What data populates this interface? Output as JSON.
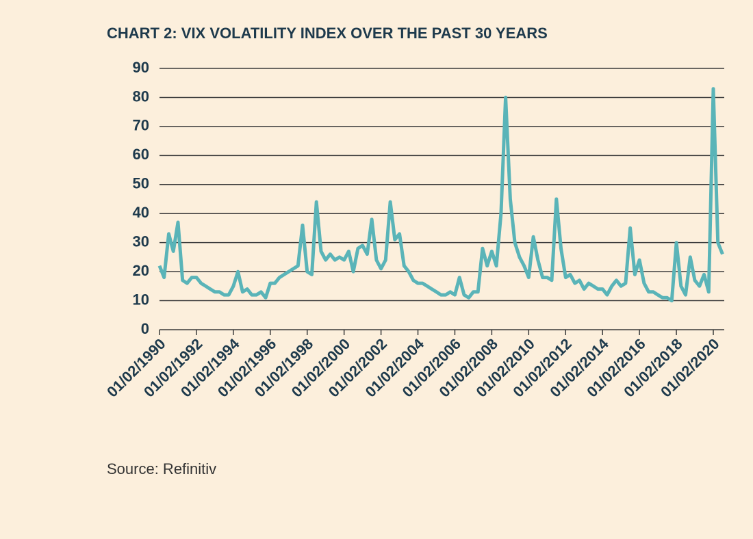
{
  "chart_data": {
    "type": "line",
    "title": "CHART 2: VIX VOLATILITY INDEX OVER THE PAST 30 YEARS",
    "source": "Source: Refinitiv",
    "categories": [
      "01/02/1990",
      null,
      null,
      null,
      null,
      null,
      null,
      null,
      "01/02/1992",
      null,
      null,
      null,
      null,
      null,
      null,
      null,
      "01/02/1994",
      null,
      null,
      null,
      null,
      null,
      null,
      null,
      "01/02/1996",
      null,
      null,
      null,
      null,
      null,
      null,
      null,
      "01/02/1998",
      null,
      null,
      null,
      null,
      null,
      null,
      null,
      "01/02/2000",
      null,
      null,
      null,
      null,
      null,
      null,
      null,
      "01/02/2002",
      null,
      null,
      null,
      null,
      null,
      null,
      null,
      "01/02/2004",
      null,
      null,
      null,
      null,
      null,
      null,
      null,
      "01/02/2006",
      null,
      null,
      null,
      null,
      null,
      null,
      null,
      "01/02/2008",
      null,
      null,
      null,
      null,
      null,
      null,
      null,
      "01/02/2010",
      null,
      null,
      null,
      null,
      null,
      null,
      null,
      "01/02/2012",
      null,
      null,
      null,
      null,
      null,
      null,
      null,
      "01/02/2014",
      null,
      null,
      null,
      null,
      null,
      null,
      null,
      "01/02/2016",
      null,
      null,
      null,
      null,
      null,
      null,
      null,
      "01/02/2018",
      null,
      null,
      null,
      null,
      null,
      null,
      null,
      "01/02/2020",
      null,
      null
    ],
    "series": [
      {
        "name": "VIX",
        "color": "#5ab4b8",
        "values": [
          22,
          18,
          33,
          27,
          37,
          17,
          16,
          18,
          18,
          16,
          15,
          14,
          13,
          13,
          12,
          12,
          15,
          20,
          13,
          14,
          12,
          12,
          13,
          11,
          16,
          16,
          18,
          19,
          20,
          21,
          22,
          36,
          20,
          19,
          44,
          27,
          24,
          26,
          24,
          25,
          24,
          27,
          20,
          28,
          29,
          26,
          38,
          24,
          21,
          24,
          44,
          31,
          33,
          22,
          20,
          17,
          16,
          16,
          15,
          14,
          13,
          12,
          12,
          13,
          12,
          18,
          12,
          11,
          13,
          13,
          28,
          22,
          27,
          22,
          40,
          80,
          45,
          30,
          25,
          22,
          18,
          32,
          24,
          18,
          18,
          17,
          45,
          28,
          18,
          19,
          16,
          17,
          14,
          16,
          15,
          14,
          14,
          12,
          15,
          17,
          15,
          16,
          35,
          19,
          24,
          16,
          13,
          13,
          12,
          11,
          11,
          10,
          30,
          15,
          12,
          25,
          17,
          15,
          19,
          13,
          83,
          30,
          26
        ]
      }
    ],
    "ylim": [
      0,
      90
    ],
    "yticks": [
      0,
      10,
      20,
      30,
      40,
      50,
      60,
      70,
      80,
      90
    ],
    "grid": true
  }
}
